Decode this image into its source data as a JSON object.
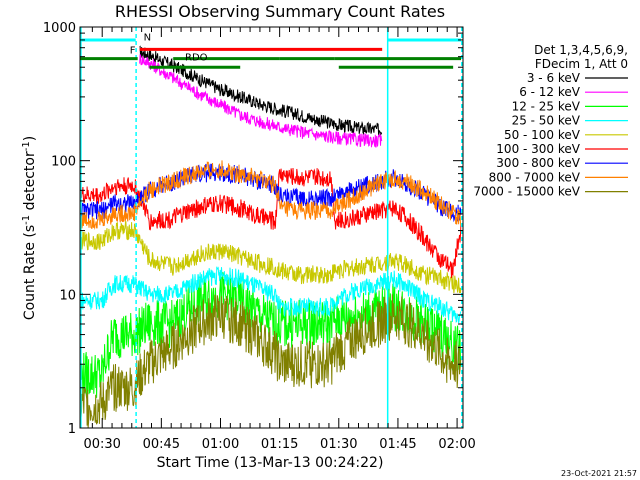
{
  "chart_data": {
    "type": "line",
    "title": "RHESSI Observing Summary Count Rates",
    "xlabel": "Start Time (13-Mar-13 00:24:22)",
    "ylabel_main": "Count Rate (s",
    "ylabel_sup1": "-1",
    "ylabel_mid": " detector",
    "ylabel_sup2": "-1",
    "ylabel_end": ")",
    "yscale": "log",
    "ylim": [
      1,
      1000
    ],
    "xlim_minutes": [
      24.37,
      121.5
    ],
    "x_ticks": [
      {
        "label": "00:30",
        "min": 30
      },
      {
        "label": "00:45",
        "min": 45
      },
      {
        "label": "01:00",
        "min": 60
      },
      {
        "label": "01:15",
        "min": 75
      },
      {
        "label": "01:30",
        "min": 90
      },
      {
        "label": "01:45",
        "min": 105
      },
      {
        "label": "02:00",
        "min": 120
      }
    ],
    "y_ticks": [
      {
        "label": "1",
        "value": 1
      },
      {
        "label": "10",
        "value": 10
      },
      {
        "label": "100",
        "value": 100
      },
      {
        "label": "1000",
        "value": 1000
      }
    ],
    "legend_header": [
      "Det 1,3,4,5,6,9,",
      "FDecim 1, Att 0"
    ],
    "timestamp": "23-Oct-2021 21:57",
    "flags": {
      "F_label": "F",
      "N_label": "N",
      "RDO_label": "RDO",
      "segments": [
        {
          "flag": "cyan",
          "color": "#00ffff",
          "y": 800,
          "ranges": [
            [
              24.5,
              38.5
            ],
            [
              102.5,
              121
            ]
          ]
        },
        {
          "flag": "F",
          "color": "#ff0000",
          "y": 680,
          "ranges": [
            [
              39.5,
              101
            ]
          ]
        },
        {
          "flag": "dark-green-1",
          "color": "#008000",
          "y": 580,
          "ranges": [
            [
              24.5,
              39
            ],
            [
              48,
              75
            ],
            [
              75,
              89
            ],
            [
              89,
              104
            ],
            [
              104,
              121
            ]
          ]
        },
        {
          "flag": "dark-green-2",
          "color": "#008000",
          "y": 500,
          "ranges": [
            [
              42,
              65
            ],
            [
              90,
              119
            ]
          ]
        }
      ]
    },
    "series": [
      {
        "name": "3 - 6 keV",
        "color": "#000000",
        "values": [
          [
            39.5,
            650
          ],
          [
            42,
            620
          ],
          [
            45,
            560
          ],
          [
            50,
            480
          ],
          [
            55,
            400
          ],
          [
            60,
            340
          ],
          [
            65,
            300
          ],
          [
            70,
            265
          ],
          [
            75,
            240
          ],
          [
            80,
            220
          ],
          [
            85,
            200
          ],
          [
            90,
            185
          ],
          [
            95,
            175
          ],
          [
            101,
            170
          ]
        ]
      },
      {
        "name": "6 - 12 keV",
        "color": "#ff00ff",
        "values": [
          [
            39.5,
            580
          ],
          [
            42,
            540
          ],
          [
            45,
            470
          ],
          [
            50,
            380
          ],
          [
            55,
            310
          ],
          [
            60,
            260
          ],
          [
            65,
            220
          ],
          [
            70,
            195
          ],
          [
            75,
            178
          ],
          [
            80,
            165
          ],
          [
            85,
            155
          ],
          [
            90,
            148
          ],
          [
            95,
            143
          ],
          [
            101,
            140
          ]
        ]
      },
      {
        "name": "12 - 25 keV",
        "color": "#00ff00",
        "values": [
          [
            24.5,
            2.5
          ],
          [
            30,
            2.5
          ],
          [
            33,
            5
          ],
          [
            38,
            5
          ],
          [
            42,
            6
          ],
          [
            48,
            6
          ],
          [
            55,
            9
          ],
          [
            60,
            10
          ],
          [
            65,
            9
          ],
          [
            70,
            7
          ],
          [
            74,
            6
          ],
          [
            75,
            6
          ],
          [
            80,
            6
          ],
          [
            88,
            6
          ],
          [
            89,
            6.5
          ],
          [
            95,
            7
          ],
          [
            100,
            7.5
          ],
          [
            104,
            8
          ],
          [
            108,
            7
          ],
          [
            112,
            6
          ],
          [
            116,
            5
          ],
          [
            119,
            4
          ],
          [
            121,
            4
          ]
        ]
      },
      {
        "name": "25 - 50 keV",
        "color": "#00ffff",
        "values": [
          [
            24.5,
            9
          ],
          [
            30,
            9
          ],
          [
            33,
            12
          ],
          [
            38,
            12
          ],
          [
            42,
            10
          ],
          [
            48,
            10
          ],
          [
            55,
            13
          ],
          [
            60,
            14
          ],
          [
            65,
            13
          ],
          [
            70,
            11
          ],
          [
            74,
            10
          ],
          [
            75,
            8
          ],
          [
            80,
            8
          ],
          [
            88,
            8
          ],
          [
            89,
            9
          ],
          [
            95,
            11
          ],
          [
            100,
            12
          ],
          [
            104,
            13
          ],
          [
            108,
            11
          ],
          [
            112,
            9
          ],
          [
            116,
            8
          ],
          [
            119,
            7
          ],
          [
            121,
            7
          ]
        ]
      },
      {
        "name": "50 - 100 keV",
        "color": "#c8c800",
        "values": [
          [
            24.5,
            25
          ],
          [
            30,
            25
          ],
          [
            33,
            30
          ],
          [
            38,
            30
          ],
          [
            42,
            18
          ],
          [
            48,
            16
          ],
          [
            55,
            20
          ],
          [
            60,
            21
          ],
          [
            65,
            19
          ],
          [
            70,
            17
          ],
          [
            74,
            16
          ],
          [
            75,
            15
          ],
          [
            80,
            14
          ],
          [
            88,
            14
          ],
          [
            89,
            15
          ],
          [
            95,
            16
          ],
          [
            100,
            17
          ],
          [
            104,
            18
          ],
          [
            108,
            16
          ],
          [
            112,
            14
          ],
          [
            116,
            13
          ],
          [
            119,
            12
          ],
          [
            121,
            12
          ]
        ]
      },
      {
        "name": "100 - 300 keV",
        "color": "#ff0000",
        "values": [
          [
            24.5,
            55
          ],
          [
            30,
            55
          ],
          [
            33,
            65
          ],
          [
            38,
            65
          ],
          [
            42,
            35
          ],
          [
            48,
            37
          ],
          [
            55,
            45
          ],
          [
            60,
            48
          ],
          [
            65,
            44
          ],
          [
            70,
            38
          ],
          [
            74,
            35
          ],
          [
            75,
            80
          ],
          [
            80,
            75
          ],
          [
            88,
            75
          ],
          [
            89,
            35
          ],
          [
            95,
            38
          ],
          [
            100,
            42
          ],
          [
            104,
            45
          ],
          [
            108,
            35
          ],
          [
            112,
            25
          ],
          [
            116,
            18
          ],
          [
            119,
            15
          ],
          [
            121,
            30
          ]
        ]
      },
      {
        "name": "300 - 800 keV",
        "color": "#0000ff",
        "values": [
          [
            24.5,
            42
          ],
          [
            30,
            42
          ],
          [
            33,
            48
          ],
          [
            38,
            48
          ],
          [
            42,
            60
          ],
          [
            48,
            70
          ],
          [
            55,
            80
          ],
          [
            60,
            82
          ],
          [
            65,
            78
          ],
          [
            70,
            70
          ],
          [
            74,
            65
          ],
          [
            75,
            55
          ],
          [
            80,
            52
          ],
          [
            88,
            52
          ],
          [
            89,
            55
          ],
          [
            95,
            62
          ],
          [
            100,
            70
          ],
          [
            104,
            75
          ],
          [
            108,
            65
          ],
          [
            112,
            55
          ],
          [
            116,
            45
          ],
          [
            119,
            40
          ],
          [
            121,
            40
          ]
        ]
      },
      {
        "name": "800 - 7000 keV",
        "color": "#ff8000",
        "values": [
          [
            24.5,
            36
          ],
          [
            30,
            36
          ],
          [
            33,
            40
          ],
          [
            38,
            40
          ],
          [
            42,
            60
          ],
          [
            48,
            70
          ],
          [
            55,
            82
          ],
          [
            60,
            86
          ],
          [
            65,
            80
          ],
          [
            70,
            72
          ],
          [
            74,
            66
          ],
          [
            75,
            44
          ],
          [
            80,
            42
          ],
          [
            88,
            42
          ],
          [
            89,
            45
          ],
          [
            95,
            55
          ],
          [
            100,
            68
          ],
          [
            104,
            74
          ],
          [
            108,
            67
          ],
          [
            112,
            57
          ],
          [
            116,
            47
          ],
          [
            119,
            40
          ],
          [
            121,
            38
          ]
        ]
      },
      {
        "name": "7000 - 15000 keV",
        "color": "#808000",
        "values": [
          [
            24.5,
            1.5
          ],
          [
            30,
            1.5
          ],
          [
            33,
            2
          ],
          [
            38,
            2
          ],
          [
            42,
            3
          ],
          [
            48,
            4
          ],
          [
            55,
            6
          ],
          [
            60,
            7
          ],
          [
            65,
            6
          ],
          [
            70,
            4.5
          ],
          [
            74,
            3.5
          ],
          [
            75,
            3
          ],
          [
            80,
            3
          ],
          [
            88,
            3
          ],
          [
            89,
            3.5
          ],
          [
            95,
            5
          ],
          [
            100,
            6
          ],
          [
            104,
            7
          ],
          [
            108,
            6
          ],
          [
            112,
            5
          ],
          [
            116,
            3.5
          ],
          [
            119,
            3
          ],
          [
            121,
            3
          ]
        ]
      }
    ],
    "vertical_markers": [
      {
        "color": "#00ffff",
        "style": "solid",
        "x_min": 24.6
      },
      {
        "color": "#00ffff",
        "style": "dashed",
        "x_min": 38.6
      },
      {
        "color": "#00ffff",
        "style": "solid",
        "x_min": 102.4
      },
      {
        "color": "#00ffff",
        "style": "dashed",
        "x_min": 121.2
      }
    ]
  }
}
